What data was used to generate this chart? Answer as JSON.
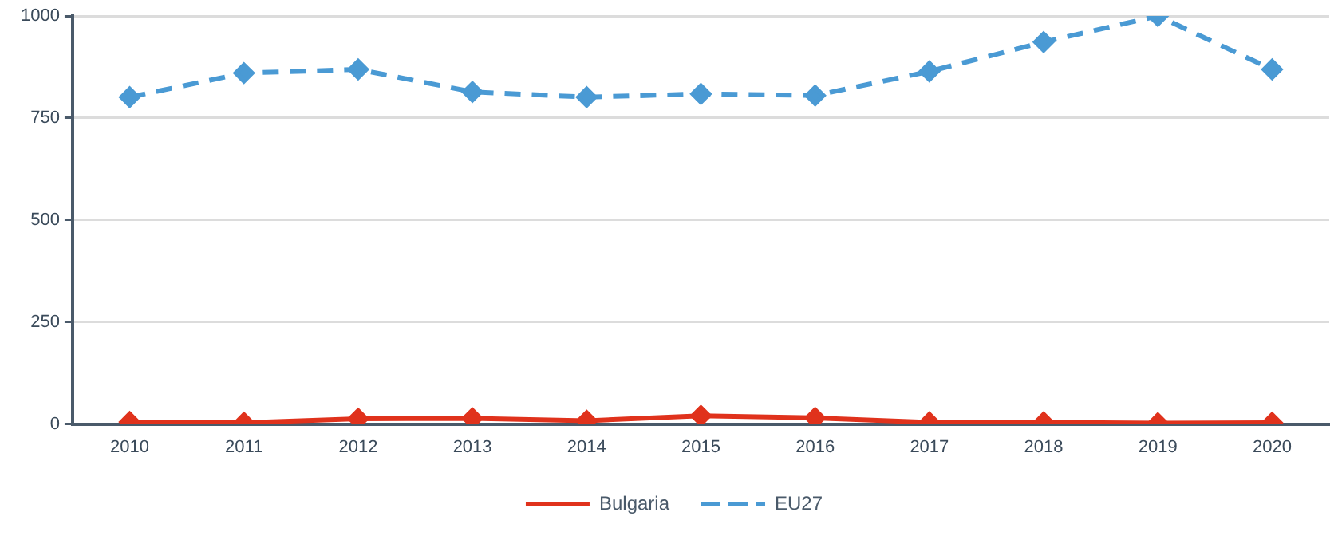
{
  "chart_data": {
    "type": "line",
    "categories": [
      "2010",
      "2011",
      "2012",
      "2013",
      "2014",
      "2015",
      "2016",
      "2017",
      "2018",
      "2019",
      "2020"
    ],
    "series": [
      {
        "name": "Bulgaria",
        "color": "#e0321c",
        "line_style": "solid",
        "values": [
          5,
          3,
          13,
          14,
          8,
          20,
          15,
          4,
          4,
          2,
          3
        ]
      },
      {
        "name": "EU27",
        "color": "#4a9ad4",
        "line_style": "dashed",
        "values": [
          801,
          860,
          869,
          814,
          801,
          809,
          805,
          864,
          936,
          1000,
          869
        ]
      }
    ],
    "ylim": [
      0,
      1000
    ],
    "yticks": [
      0,
      250,
      500,
      750,
      1000
    ],
    "grid": "y",
    "legend": "bottom",
    "marker": "diamond"
  }
}
